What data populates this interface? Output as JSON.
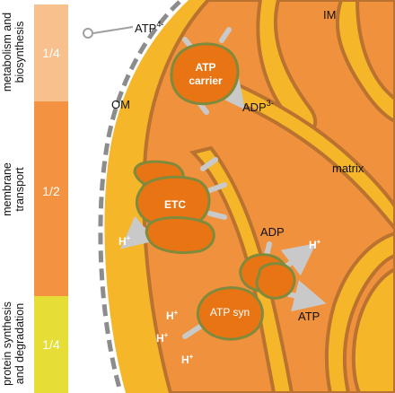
{
  "sidebar": {
    "segments": [
      {
        "label": "metabolism and biosynthesis",
        "fraction_text": "1/4",
        "color": "#f8c08c"
      },
      {
        "label": "membrane transport",
        "fraction_text": "1/2",
        "color": "#f39342"
      },
      {
        "label": "protein synthesis and degradation",
        "fraction_text": "1/4",
        "color": "#e6de36"
      }
    ]
  },
  "diagram": {
    "labels": {
      "im": "IM",
      "om": "OM",
      "matrix": "matrix",
      "atp_in": "ATP",
      "atp_in_sup": "4-",
      "adp_out": "ADP",
      "adp_out_sup": "3-",
      "adp": "ADP",
      "atp": "ATP",
      "h": "H",
      "h_sup": "+"
    },
    "proteins": {
      "atp_carrier_line1": "ATP",
      "atp_carrier_line2": "carrier",
      "etc": "ETC",
      "atp_syn": "ATP syn"
    },
    "colors": {
      "outer_membrane_fill": "#f5b62a",
      "matrix_fill": "#f0913d",
      "membrane_stroke": "#b9722f",
      "protein_fill": "#e87414",
      "protein_stroke": "#808a3c",
      "arrow": "#c9c9c9",
      "label_text": "#ffffff"
    }
  }
}
